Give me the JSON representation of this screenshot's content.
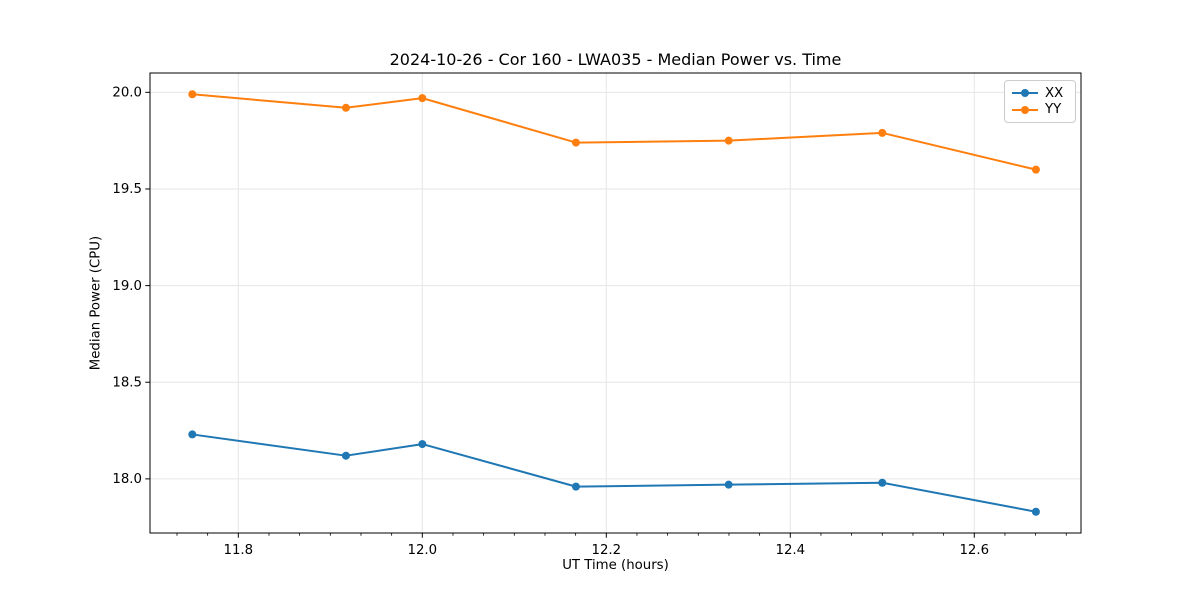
{
  "chart_data": {
    "type": "line",
    "title": "2024-10-26 - Cor 160 - LWA035 - Median Power vs. Time",
    "xlabel": "UT Time (hours)",
    "ylabel": "Median Power (CPU)",
    "x": [
      11.75,
      11.917,
      12.0,
      12.167,
      12.333,
      12.5,
      12.667
    ],
    "series": [
      {
        "name": "XX",
        "color": "#1f77b4",
        "marker": "circle",
        "values": [
          18.23,
          18.12,
          18.18,
          17.96,
          17.97,
          17.98,
          17.83
        ]
      },
      {
        "name": "YY",
        "color": "#ff7f0e",
        "marker": "circle",
        "values": [
          19.99,
          19.92,
          19.97,
          19.74,
          19.75,
          19.79,
          19.6
        ]
      }
    ],
    "xlim": [
      11.704,
      12.716
    ],
    "ylim": [
      17.72,
      20.1
    ],
    "xticks": [
      11.8,
      12.0,
      12.2,
      12.4,
      12.6
    ],
    "xtick_labels": [
      "11.8",
      "12.0",
      "12.2",
      "12.4",
      "12.6"
    ],
    "yticks": [
      18.0,
      18.5,
      19.0,
      19.5,
      20.0
    ],
    "ytick_labels": [
      "18.0",
      "18.5",
      "19.0",
      "19.5",
      "20.0"
    ],
    "x_minor_divisions": 6,
    "grid": true,
    "legend_position": "top-right"
  },
  "colors": {
    "background": "#ffffff",
    "axis": "#000000",
    "grid": "#e6e6e6",
    "text": "#000000",
    "legend_border": "#cccccc"
  }
}
